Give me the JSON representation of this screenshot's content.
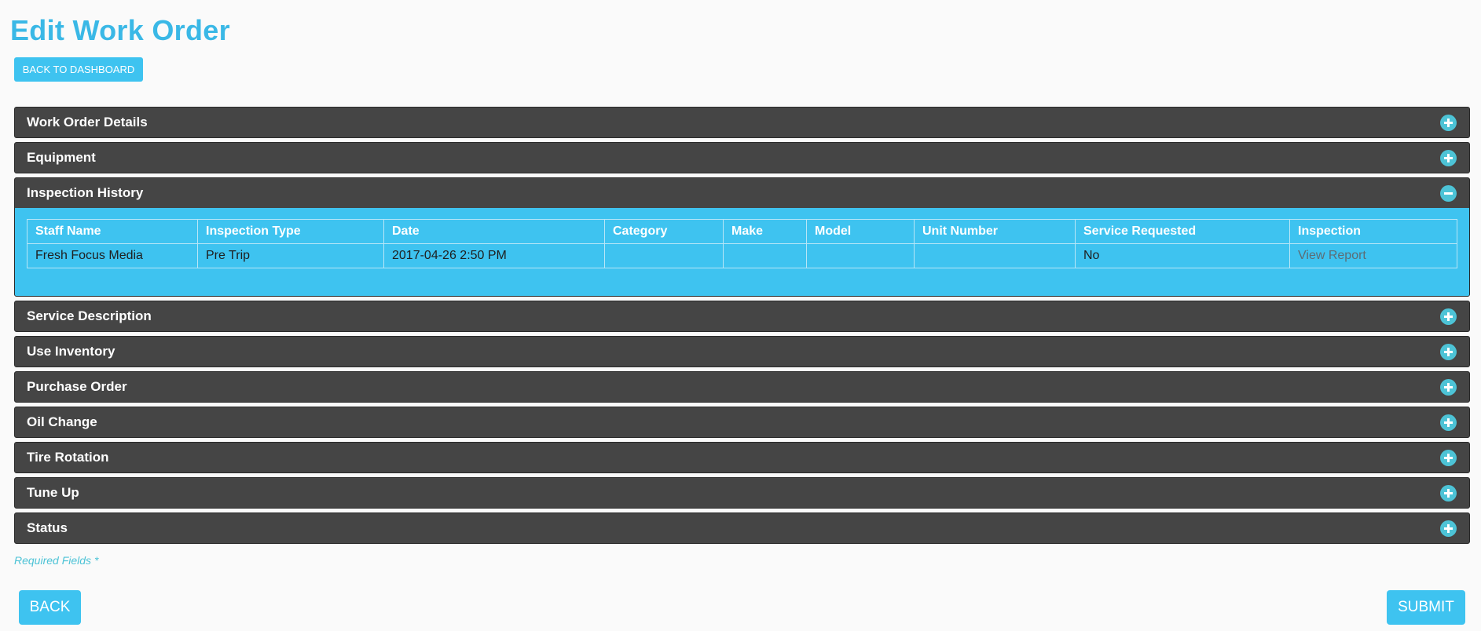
{
  "page": {
    "title": "Edit Work Order",
    "dashboard_button": "BACK TO DASHBOARD"
  },
  "sections": [
    {
      "label": "Work Order Details",
      "expanded": false,
      "icon": "plus-circle-icon"
    },
    {
      "label": "Equipment",
      "expanded": false,
      "icon": "plus-circle-icon"
    },
    {
      "label": "Inspection History",
      "expanded": true,
      "icon": "minus-circle-icon"
    },
    {
      "label": "Service Description",
      "expanded": false,
      "icon": "plus-circle-icon"
    },
    {
      "label": "Use Inventory",
      "expanded": false,
      "icon": "plus-circle-icon"
    },
    {
      "label": "Purchase Order",
      "expanded": false,
      "icon": "plus-circle-icon"
    },
    {
      "label": "Oil Change",
      "expanded": false,
      "icon": "plus-circle-icon"
    },
    {
      "label": "Tire Rotation",
      "expanded": false,
      "icon": "plus-circle-icon"
    },
    {
      "label": "Tune Up",
      "expanded": false,
      "icon": "plus-circle-icon"
    },
    {
      "label": "Status",
      "expanded": false,
      "icon": "plus-circle-icon"
    }
  ],
  "inspection_history": {
    "columns": [
      "Staff Name",
      "Inspection Type",
      "Date",
      "Category",
      "Make",
      "Model",
      "Unit Number",
      "Service Requested",
      "Inspection"
    ],
    "rows": [
      {
        "staff_name": "Fresh Focus Media",
        "inspection_type": "Pre Trip",
        "date": "2017-04-26 2:50 PM",
        "category": "",
        "make": "",
        "model": "",
        "unit_number": "",
        "service_requested": "No",
        "inspection_link": "View Report"
      }
    ]
  },
  "footer": {
    "required_note": "Required Fields *",
    "back_label": "BACK",
    "submit_label": "SUBMIT"
  },
  "colors": {
    "accent": "#3ec3f0",
    "title": "#3ab8e6",
    "section_header_bg": "#454545",
    "toggle_icon": "#4dc3d6"
  }
}
